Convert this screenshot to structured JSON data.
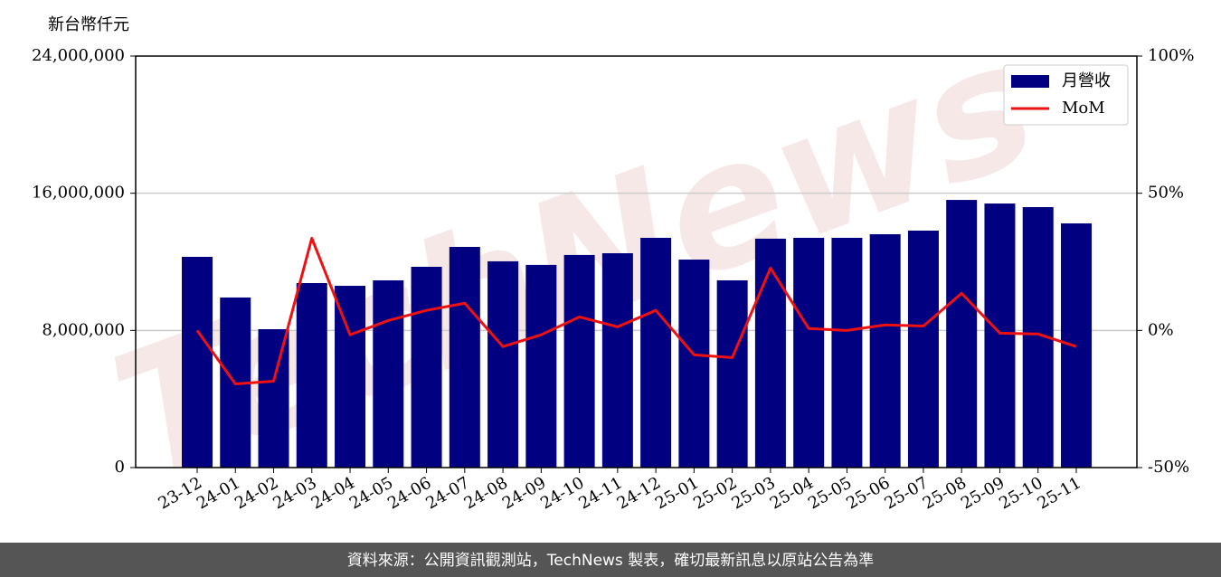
{
  "chart_data": {
    "type": "bar-line",
    "y_label": "新台幣仟元",
    "watermark": "TechNews",
    "footer": "資料來源：公開資訊觀測站，TechNews 製表，確切最新訊息以原站公告為準",
    "categories": [
      "23-12",
      "24-01",
      "24-02",
      "24-03",
      "24-04",
      "24-05",
      "24-06",
      "24-07",
      "24-08",
      "24-09",
      "24-10",
      "24-11",
      "24-12",
      "25-01",
      "25-02",
      "25-03",
      "25-04",
      "25-05",
      "25-06",
      "25-07",
      "25-08",
      "25-09",
      "25-10",
      "25-11"
    ],
    "series": [
      {
        "name": "月營收",
        "type": "bar",
        "color": "#000080",
        "values": [
          12290000,
          9920000,
          8070000,
          10760000,
          10600000,
          10920000,
          11710000,
          12870000,
          12030000,
          11820000,
          12400000,
          12500000,
          13400000,
          12130000,
          10920000,
          13350000,
          13400000,
          13400000,
          13610000,
          13820000,
          15610000,
          15400000,
          15190000,
          14240000
        ]
      },
      {
        "name": "MoM",
        "type": "line",
        "axis": "y2",
        "color": "#ee1111",
        "values": [
          0,
          -19.5,
          -18.5,
          33.6,
          -1.6,
          3.6,
          7.3,
          9.9,
          -5.9,
          -1.6,
          4.9,
          1.3,
          7.3,
          -8.9,
          -9.9,
          22.7,
          0.7,
          0,
          2.0,
          1.6,
          13.5,
          -1.0,
          -1.3,
          -5.9
        ]
      }
    ],
    "ylim": [
      0,
      24000000
    ],
    "yticks": [
      0,
      {
        "value": 8000000,
        "label": "8,000,000"
      },
      {
        "value": 16000000,
        "label": "16,000,000"
      },
      {
        "value": 24000000,
        "label": "24,000,000"
      }
    ],
    "y2lim": [
      -50,
      100
    ],
    "y2ticks": [
      {
        "value": -50,
        "label": "-50%"
      },
      {
        "value": 0,
        "label": "0%"
      },
      {
        "value": 50,
        "label": "50%"
      },
      {
        "value": 100,
        "label": "100%"
      }
    ],
    "grid": true,
    "legend": "upper right"
  }
}
